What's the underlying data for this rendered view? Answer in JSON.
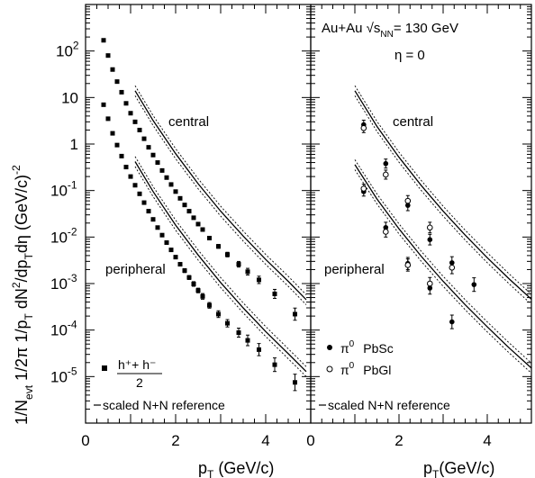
{
  "chart_data": [
    {
      "type": "scatter",
      "panel": "left",
      "x_label": "p",
      "x_label_sub": "T",
      "x_label_rest": " (GeV/c)",
      "y_label": "1/N_evt 1/2π 1/p_T dN²/dp_T dη (GeV/c)^-2",
      "x_range": [
        0,
        5
      ],
      "y_range_log10": [
        -6,
        3
      ],
      "log_y": true,
      "x_ticks": [
        "0",
        "2",
        "4"
      ],
      "y_tick_labels": [
        {
          "base": "10",
          "exp": "-5",
          "log": -5
        },
        {
          "base": "10",
          "exp": "-4",
          "log": -4
        },
        {
          "base": "10",
          "exp": "-3",
          "log": -3
        },
        {
          "base": "10",
          "exp": "-2",
          "log": -2
        },
        {
          "base": "10",
          "exp": "-1",
          "log": -1
        },
        {
          "base": "1",
          "exp": "",
          "log": 0
        },
        {
          "base": "10",
          "exp": "",
          "log": 1
        },
        {
          "base": "10",
          "exp": "2",
          "log": 2
        }
      ],
      "annotations": [
        "central",
        "peripheral"
      ],
      "legend": {
        "marker": "filled-square",
        "numerator": "h⁺+ h⁻",
        "denominator": "2",
        "reference_label": "scaled N+N reference"
      },
      "series": [
        {
          "name": "h⁺+ h⁻ / 2 central",
          "marker": "filled-square",
          "x": [
            0.4,
            0.5,
            0.6,
            0.7,
            0.8,
            0.9,
            1.0,
            1.1,
            1.2,
            1.3,
            1.4,
            1.5,
            1.6,
            1.7,
            1.8,
            1.9,
            2.0,
            2.1,
            2.2,
            2.3,
            2.4,
            2.5,
            2.6,
            2.75,
            2.95,
            3.15,
            3.4,
            3.6,
            3.85,
            4.2,
            4.65
          ],
          "y": [
            170,
            80,
            40,
            22,
            13,
            7.5,
            4.6,
            3.0,
            2.0,
            1.3,
            0.85,
            0.58,
            0.4,
            0.27,
            0.19,
            0.135,
            0.095,
            0.068,
            0.049,
            0.036,
            0.026,
            0.019,
            0.0145,
            0.0095,
            0.0063,
            0.0042,
            0.0026,
            0.0018,
            0.0012,
            0.0006,
            0.00022
          ],
          "err_rel": [
            0.05,
            0.05,
            0.05,
            0.05,
            0.05,
            0.05,
            0.05,
            0.05,
            0.05,
            0.05,
            0.05,
            0.05,
            0.05,
            0.05,
            0.05,
            0.05,
            0.05,
            0.05,
            0.05,
            0.05,
            0.05,
            0.05,
            0.08,
            0.08,
            0.1,
            0.12,
            0.15,
            0.18,
            0.2,
            0.25,
            0.35
          ]
        },
        {
          "name": "h⁺+ h⁻ / 2 peripheral",
          "marker": "filled-square",
          "x": [
            0.4,
            0.5,
            0.6,
            0.7,
            0.8,
            0.9,
            1.0,
            1.1,
            1.2,
            1.3,
            1.4,
            1.5,
            1.6,
            1.7,
            1.8,
            1.9,
            2.0,
            2.1,
            2.2,
            2.3,
            2.4,
            2.5,
            2.6,
            2.75,
            2.95,
            3.15,
            3.4,
            3.6,
            3.85,
            4.2,
            4.65
          ],
          "y": [
            7.0,
            3.5,
            1.7,
            0.95,
            0.55,
            0.32,
            0.2,
            0.13,
            0.085,
            0.055,
            0.036,
            0.024,
            0.016,
            0.011,
            0.0076,
            0.0053,
            0.0037,
            0.0026,
            0.0019,
            0.00135,
            0.00098,
            0.00071,
            0.00053,
            0.00034,
            0.00022,
            0.00014,
            8.8e-05,
            6e-05,
            3.8e-05,
            1.8e-05,
            7.5e-06
          ],
          "err_rel": [
            0.05,
            0.05,
            0.05,
            0.05,
            0.05,
            0.05,
            0.05,
            0.05,
            0.05,
            0.05,
            0.05,
            0.05,
            0.05,
            0.05,
            0.05,
            0.05,
            0.08,
            0.08,
            0.1,
            0.1,
            0.12,
            0.12,
            0.15,
            0.15,
            0.18,
            0.2,
            0.25,
            0.3,
            0.35,
            0.4,
            0.5
          ]
        }
      ],
      "reference_curves": [
        {
          "x": [
            1.1,
            1.5,
            2.0,
            2.5,
            3.0,
            3.5,
            4.0,
            4.5,
            4.9
          ],
          "y": [
            14,
            3.2,
            0.62,
            0.14,
            0.036,
            0.0105,
            0.0033,
            0.00112,
            0.00045
          ],
          "band": 0.28
        },
        {
          "x": [
            1.1,
            1.5,
            2.0,
            2.5,
            3.0,
            3.5,
            4.0,
            4.5,
            4.9
          ],
          "y": [
            0.42,
            0.095,
            0.018,
            0.0041,
            0.00105,
            0.0003,
            9.3e-05,
            3.1e-05,
            1.28e-05
          ],
          "band": 0.28
        }
      ]
    },
    {
      "type": "scatter",
      "panel": "right",
      "x_label": "p",
      "x_label_sub": "T",
      "x_label_rest": "(GeV/c)",
      "x_range": [
        0,
        5
      ],
      "y_range_log10": [
        -6,
        3
      ],
      "log_y": true,
      "x_ticks": [
        "0",
        "2",
        "4"
      ],
      "title_line1_pre": "Au+Au √s",
      "title_line1_sub": "NN",
      "title_line1_post": "= 130 GeV",
      "title_line2": "η = 0",
      "annotations": [
        "central",
        "peripheral"
      ],
      "legend": [
        {
          "marker": "filled-circle",
          "particle": "π",
          "sup": "0",
          "detector": "PbSc"
        },
        {
          "marker": "open-circle",
          "particle": "π",
          "sup": "0",
          "detector": "PbGl"
        }
      ],
      "reference_label": "scaled N+N reference",
      "series": [
        {
          "name": "π0 PbSc central",
          "marker": "filled-circle",
          "x": [
            1.2,
            1.7,
            2.2,
            2.7,
            3.2,
            3.7
          ],
          "y": [
            2.6,
            0.38,
            0.048,
            0.0088,
            0.0028,
            0.00095
          ],
          "err_rel": [
            0.25,
            0.25,
            0.3,
            0.3,
            0.35,
            0.4
          ]
        },
        {
          "name": "π0 PbGl central",
          "marker": "open-circle",
          "x": [
            1.2,
            1.7,
            2.2,
            2.7,
            3.2
          ],
          "y": [
            2.2,
            0.22,
            0.06,
            0.016,
            0.0022
          ],
          "err_rel": [
            0.25,
            0.25,
            0.3,
            0.3,
            0.35
          ]
        },
        {
          "name": "π0 PbSc peripheral",
          "marker": "filled-circle",
          "x": [
            1.2,
            1.7,
            2.2,
            2.7,
            3.2
          ],
          "y": [
            0.095,
            0.016,
            0.0027,
            0.0008,
            0.00015
          ],
          "err_rel": [
            0.25,
            0.3,
            0.35,
            0.35,
            0.4
          ]
        },
        {
          "name": "π0 PbGl peripheral",
          "marker": "open-circle",
          "x": [
            1.2,
            1.7,
            2.2,
            2.7
          ],
          "y": [
            0.11,
            0.013,
            0.0025,
            0.001
          ],
          "err_rel": [
            0.25,
            0.3,
            0.35,
            0.35
          ]
        }
      ],
      "reference_curves": [
        {
          "x": [
            1.0,
            1.5,
            2.0,
            2.5,
            3.0,
            3.5,
            4.0,
            4.5,
            5.0
          ],
          "y": [
            14,
            2.4,
            0.52,
            0.13,
            0.036,
            0.011,
            0.0036,
            0.00125,
            0.00046
          ],
          "band": 0.28
        },
        {
          "x": [
            1.0,
            1.5,
            2.0,
            2.5,
            3.0,
            3.5,
            4.0,
            4.5,
            5.0
          ],
          "y": [
            0.36,
            0.066,
            0.015,
            0.0039,
            0.00112,
            0.00035,
            0.000117,
            4.1e-05,
            1.52e-05
          ],
          "band": 0.28
        }
      ]
    }
  ]
}
